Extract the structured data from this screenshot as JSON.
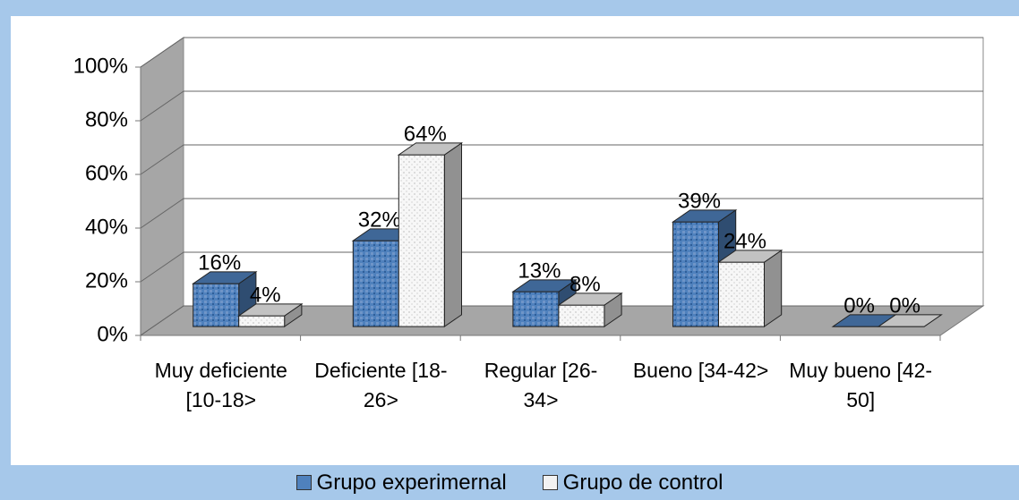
{
  "chart_data": {
    "type": "bar3d",
    "categories": [
      "Muy deficiente [10-18>",
      "Deficiente [18-26>",
      "Regular [26-34>",
      "Bueno [34-42>",
      "Muy bueno [42-50]"
    ],
    "series": [
      {
        "name": "Grupo experimernal",
        "color": "#4f81bd",
        "values": [
          16,
          32,
          13,
          39,
          0
        ],
        "value_labels": [
          "16%",
          "32%",
          "13%",
          "39%",
          "0%"
        ]
      },
      {
        "name": "Grupo de control",
        "color": "#f2f2f2",
        "values": [
          4,
          64,
          8,
          24,
          0
        ],
        "value_labels": [
          "4%",
          "64%",
          "8%",
          "24%",
          "0%"
        ]
      }
    ],
    "ylim": [
      0,
      100
    ],
    "yticks": [
      {
        "value": 0,
        "label": "0%"
      },
      {
        "value": 20,
        "label": "20%"
      },
      {
        "value": 40,
        "label": "40%"
      },
      {
        "value": 60,
        "label": "60%"
      },
      {
        "value": 80,
        "label": "80%"
      },
      {
        "value": 100,
        "label": "100%"
      }
    ],
    "grid": true,
    "legend": "bottom"
  }
}
